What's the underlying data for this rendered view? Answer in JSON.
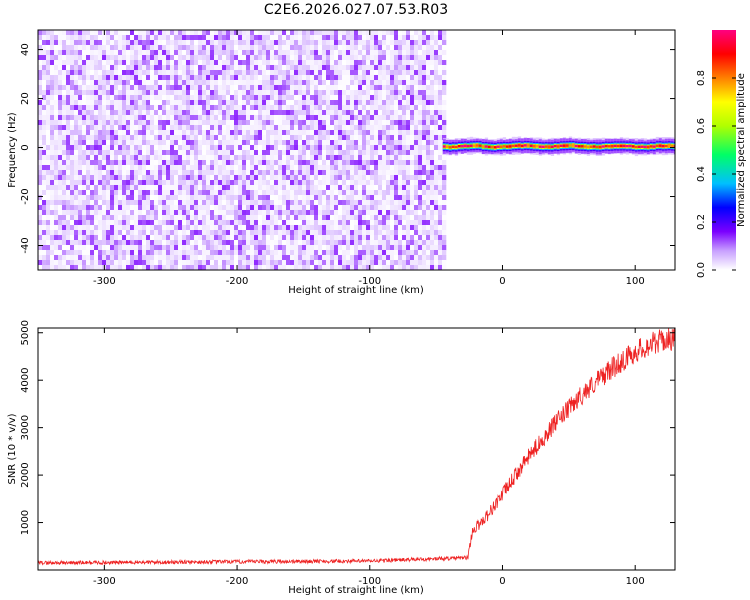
{
  "title": "C2E6.2026.027.07.53.R03",
  "chart_data": [
    {
      "type": "heatmap",
      "id": "spectrogram",
      "xlabel": "Height of straight line (km)",
      "ylabel": "Frequency (Hz)",
      "xlim": [
        -350,
        130
      ],
      "ylim": [
        -50,
        48
      ],
      "xticks": [
        -300,
        -200,
        -100,
        0,
        100
      ],
      "yticks": [
        -40,
        -20,
        0,
        20,
        40
      ],
      "noise_region": {
        "x_from": -350,
        "x_to": -45,
        "description_level": "low amplitude scattered noise"
      },
      "signal_band": {
        "x_from": -45,
        "x_to": 130,
        "center_freq": 0.5,
        "half_width_hz": 2,
        "peak_amplitude": 0.95
      },
      "colorbar": {
        "label": "Normalized spectral amplitude",
        "ticks": [
          0.0,
          0.2,
          0.4,
          0.6,
          0.8
        ],
        "range": [
          0,
          1
        ],
        "colors": [
          "#ffffff",
          "#e0c8ff",
          "#7b00ff",
          "#0000ff",
          "#00bfff",
          "#00ff66",
          "#b0ff00",
          "#ffff00",
          "#ff8000",
          "#ff0000",
          "#ff0080"
        ]
      }
    },
    {
      "type": "line",
      "id": "snr",
      "xlabel": "Height of straight line (km)",
      "ylabel": "SNR (10 * v/v)",
      "xlim": [
        -350,
        130
      ],
      "ylim": [
        0,
        5100
      ],
      "xticks": [
        -300,
        -200,
        -100,
        0,
        100
      ],
      "yticks": [
        1000,
        2000,
        3000,
        4000,
        5000
      ],
      "color": "#ee2222",
      "key_points": [
        {
          "x": -350,
          "y": 150
        },
        {
          "x": -100,
          "y": 190
        },
        {
          "x": -26,
          "y": 260
        },
        {
          "x": -23,
          "y": 800
        },
        {
          "x": -10,
          "y": 1200
        },
        {
          "x": 0,
          "y": 1600
        },
        {
          "x": 20,
          "y": 2400
        },
        {
          "x": 40,
          "y": 3100
        },
        {
          "x": 60,
          "y": 3700
        },
        {
          "x": 80,
          "y": 4200
        },
        {
          "x": 100,
          "y": 4600
        },
        {
          "x": 115,
          "y": 4800
        },
        {
          "x": 130,
          "y": 4900
        }
      ],
      "noise_amplitude": 160
    }
  ]
}
